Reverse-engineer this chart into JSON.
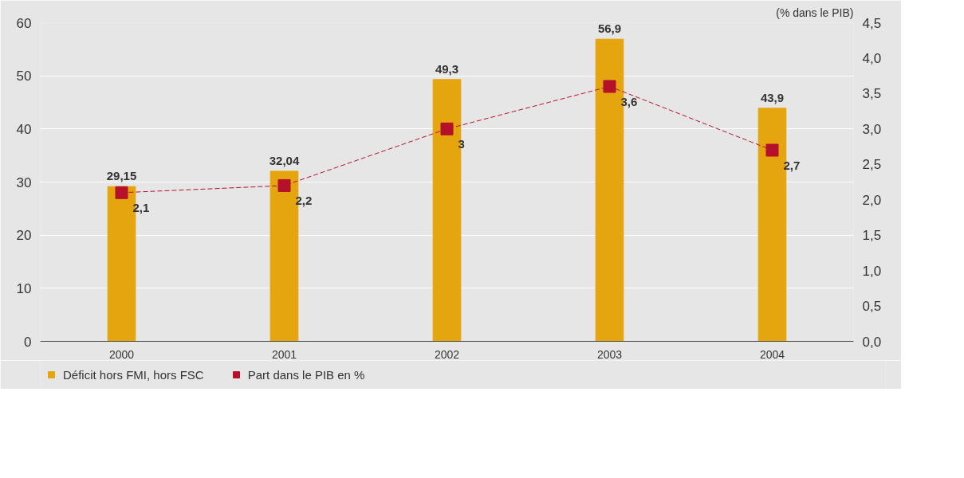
{
  "chart_data": {
    "type": "bar",
    "categories": [
      "2000",
      "2001",
      "2002",
      "2003",
      "2004"
    ],
    "y2label": "(% dans le PIB)",
    "series": [
      {
        "name": "Déficit hors FMI, hors FSC",
        "color": "#e5a50f",
        "values": [
          29.15,
          32.04,
          49.3,
          56.9,
          43.9
        ],
        "value_labels": [
          "29,15",
          "32,04",
          "49,3",
          "56,9",
          "43,9"
        ]
      },
      {
        "name": "Part dans le PIB en %",
        "type": "line",
        "axis": "y2",
        "color": "#b5112b",
        "marker": "square",
        "line_style": "dashed",
        "values": [
          2.1,
          2.2,
          3,
          3.6,
          2.7
        ],
        "value_labels": [
          "2,1",
          "2,2",
          "3",
          "3,6",
          "2,7"
        ]
      }
    ],
    "ylim": [
      0,
      60
    ],
    "yticks": [
      0,
      10,
      20,
      30,
      40,
      50,
      60
    ],
    "y2lim": [
      0,
      4.5
    ],
    "y2ticks": [
      {
        "value": 0,
        "label": "0,0"
      },
      {
        "value": 0.5,
        "label": "0,5"
      },
      {
        "value": 1,
        "label": "1,0"
      },
      {
        "value": 1.5,
        "label": "1,5"
      },
      {
        "value": 2,
        "label": "2,0"
      },
      {
        "value": 2.5,
        "label": "2,5"
      },
      {
        "value": 3,
        "label": "3,0"
      },
      {
        "value": 3.5,
        "label": "3,5"
      },
      {
        "value": 4,
        "label": "4,0"
      },
      {
        "value": 4.5,
        "label": "4,5"
      }
    ],
    "grid": "y",
    "legend": "bottom left"
  }
}
